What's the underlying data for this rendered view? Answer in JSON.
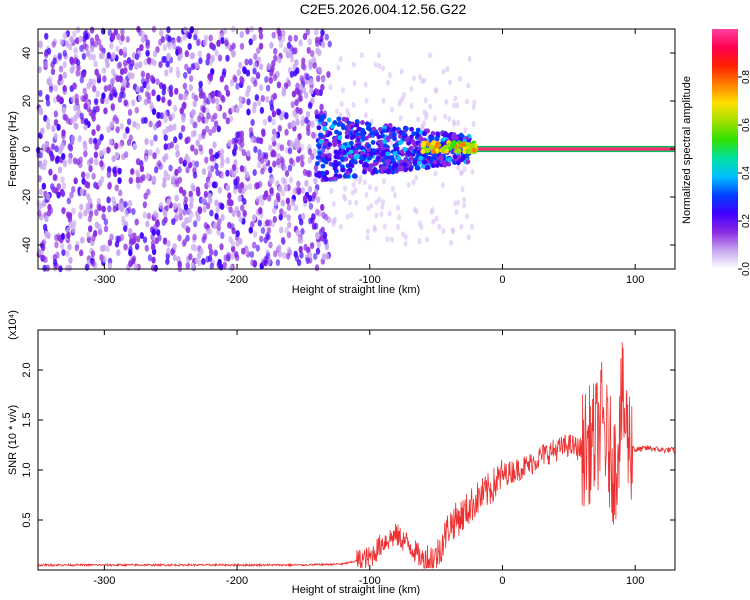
{
  "title": "C2E5.2026.004.12.56.G22",
  "chart_data": [
    {
      "type": "heatmap",
      "xlabel": "Height of straight line (km)",
      "ylabel": "Frequency (Hz)",
      "xlim": [
        -350,
        130
      ],
      "ylim": [
        -50,
        50
      ],
      "xticks": [
        -300,
        -200,
        -100,
        0,
        100
      ],
      "yticks": [
        -40,
        -20,
        0,
        20,
        40
      ],
      "colorbar": {
        "label": "Normalized spectral amplitude",
        "range": [
          0,
          1
        ],
        "ticks": [
          "0.0",
          "0.2",
          "0.4",
          "0.6",
          "0.8"
        ],
        "colors": [
          "#ffffff",
          "#c8a8f0",
          "#8a2be2",
          "#4000ff",
          "#0040ff",
          "#00c0ff",
          "#00e0a0",
          "#30e000",
          "#a0e000",
          "#ffe000",
          "#ff8000",
          "#ff2000",
          "#ff0050",
          "#ff40a0"
        ]
      },
      "description_regions": [
        {
          "x_range": [
            -350,
            -130
          ],
          "freq_range": [
            -50,
            50
          ],
          "amplitude": "0.0-0.15 scattered noise"
        },
        {
          "x_range": [
            -140,
            -30
          ],
          "freq_range": [
            -12,
            12
          ],
          "amplitude": "0.1-0.35"
        },
        {
          "x_range": [
            -60,
            130
          ],
          "freq_range": [
            -2,
            2
          ],
          "amplitude": "0.8-1.0 carrier line"
        }
      ]
    },
    {
      "type": "line",
      "xlabel": "Height of straight line (km)",
      "ylabel": "SNR (10 * v/v)",
      "yscale_label": "(x10⁴)",
      "xlim": [
        -350,
        130
      ],
      "ylim": [
        0,
        2.4
      ],
      "xticks": [
        -300,
        -200,
        -100,
        0,
        100
      ],
      "yticks": [
        "0.5",
        "1.0",
        "1.5",
        "2.0"
      ],
      "color": "#ee3030",
      "series": [
        {
          "x": [
            -350,
            -300,
            -250,
            -200,
            -150,
            -120,
            -100,
            -90,
            -80,
            -70,
            -60,
            -50,
            -40,
            -30,
            -20,
            -10,
            0,
            10,
            20,
            30,
            40,
            50,
            60,
            70,
            75,
            80,
            85,
            90,
            95,
            100,
            110,
            120,
            130
          ],
          "y": [
            0.05,
            0.05,
            0.05,
            0.05,
            0.05,
            0.06,
            0.12,
            0.28,
            0.35,
            0.25,
            0.1,
            0.12,
            0.45,
            0.55,
            0.7,
            0.8,
            0.95,
            1.0,
            1.05,
            1.15,
            1.2,
            1.25,
            1.2,
            1.3,
            1.5,
            1.2,
            1.0,
            1.7,
            1.3,
            1.2,
            1.22,
            1.2,
            1.2
          ]
        }
      ]
    }
  ]
}
